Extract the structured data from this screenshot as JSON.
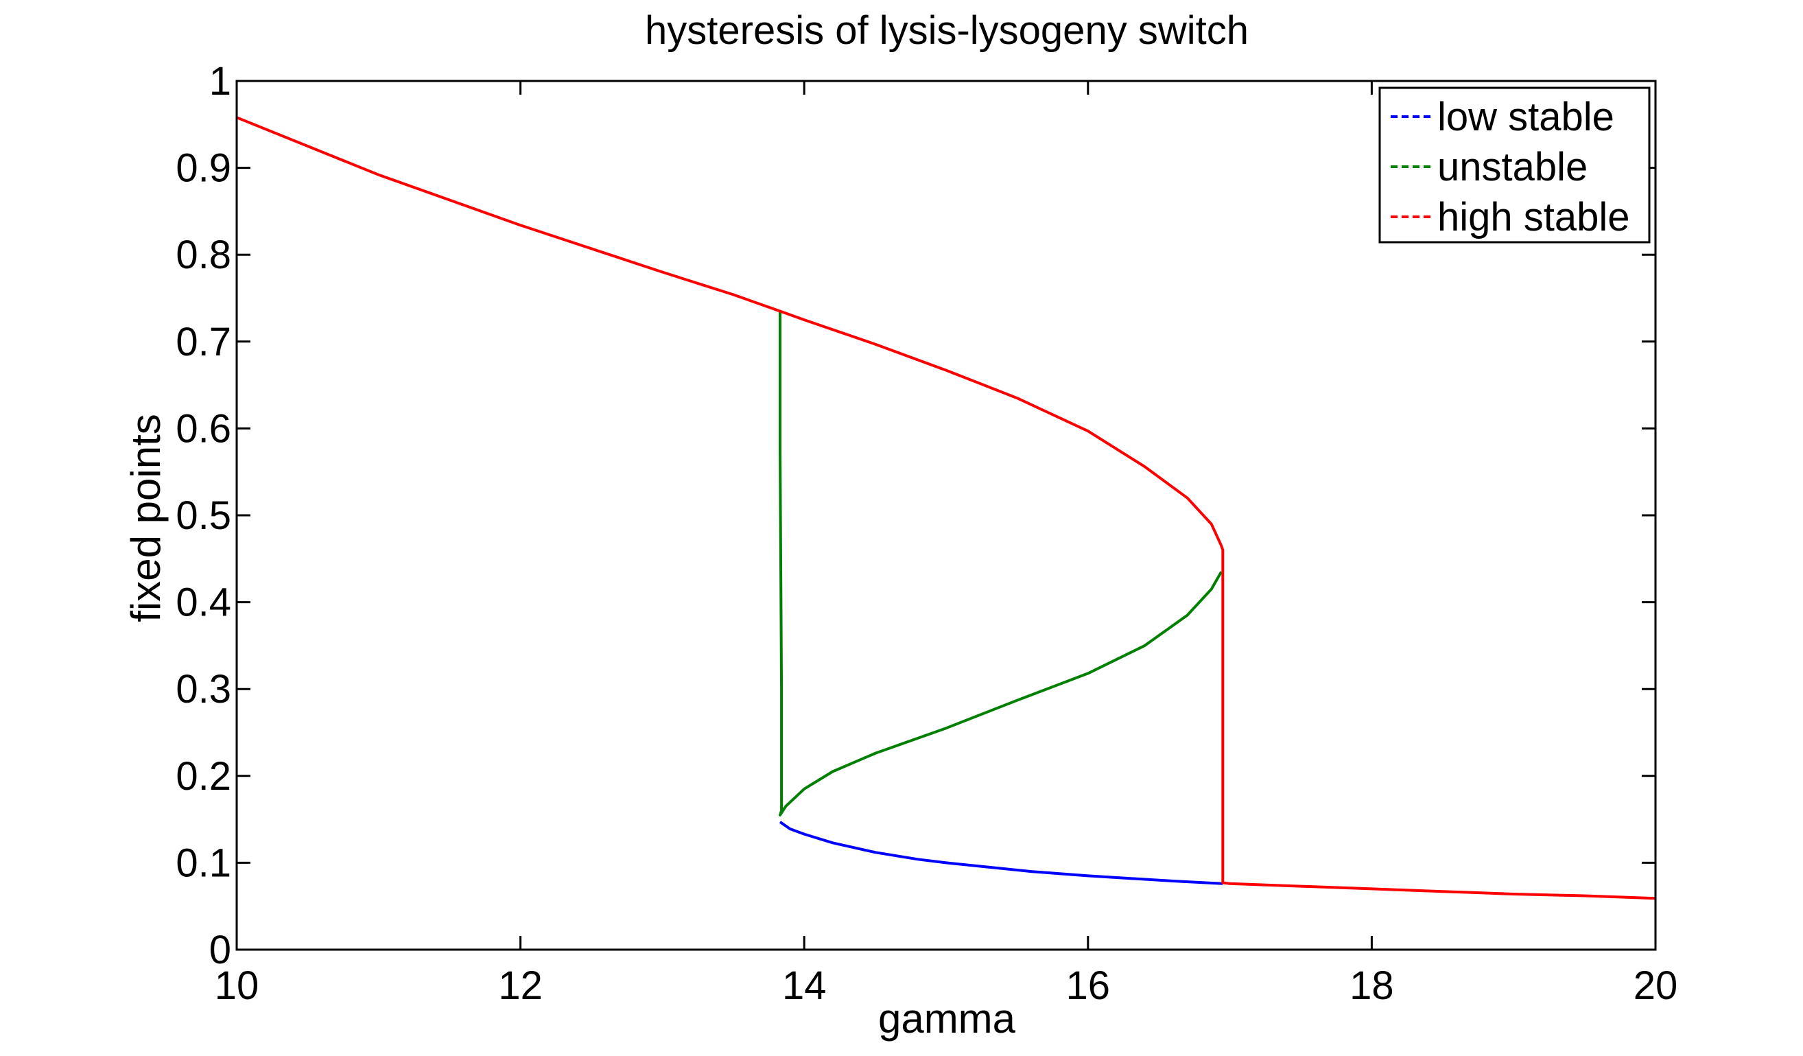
{
  "chart_data": {
    "type": "line",
    "title": "hysteresis of lysis-lysogeny switch",
    "xlabel": "gamma",
    "ylabel": "fixed points",
    "xlim": [
      10,
      20
    ],
    "ylim": [
      0,
      1
    ],
    "xticks": [
      10,
      12,
      14,
      16,
      18,
      20
    ],
    "yticks": [
      0,
      0.1,
      0.2,
      0.3,
      0.4,
      0.5,
      0.6,
      0.7,
      0.8,
      0.9,
      1
    ],
    "xtick_labels": [
      "10",
      "12",
      "14",
      "16",
      "18",
      "20"
    ],
    "ytick_labels": [
      "0",
      "0.1",
      "0.2",
      "0.3",
      "0.4",
      "0.5",
      "0.6",
      "0.7",
      "0.8",
      "0.9",
      "1"
    ],
    "grid": false,
    "legend_position": "top-right",
    "series": [
      {
        "name": "low stable",
        "color": "#0000ff",
        "points": [
          [
            13.83,
            0.147
          ],
          [
            13.9,
            0.139
          ],
          [
            14.0,
            0.133
          ],
          [
            14.2,
            0.123
          ],
          [
            14.5,
            0.112
          ],
          [
            14.8,
            0.104
          ],
          [
            15.0,
            0.1
          ],
          [
            15.3,
            0.095
          ],
          [
            15.6,
            0.09
          ],
          [
            16.0,
            0.085
          ],
          [
            16.3,
            0.082
          ],
          [
            16.6,
            0.079
          ],
          [
            16.95,
            0.076
          ]
        ]
      },
      {
        "name": "unstable",
        "color": "#008000",
        "points": [
          [
            13.83,
            0.735
          ],
          [
            13.83,
            0.58
          ],
          [
            13.84,
            0.3
          ],
          [
            13.84,
            0.16
          ],
          [
            13.83,
            0.155
          ],
          [
            13.87,
            0.165
          ],
          [
            14.0,
            0.185
          ],
          [
            14.2,
            0.205
          ],
          [
            14.5,
            0.226
          ],
          [
            15.0,
            0.255
          ],
          [
            15.5,
            0.287
          ],
          [
            16.0,
            0.318
          ],
          [
            16.4,
            0.35
          ],
          [
            16.7,
            0.385
          ],
          [
            16.87,
            0.415
          ],
          [
            16.94,
            0.435
          ]
        ]
      },
      {
        "name": "high stable",
        "color": "#ff0000",
        "points": [
          [
            10.0,
            0.958
          ],
          [
            11.0,
            0.892
          ],
          [
            12.0,
            0.834
          ],
          [
            13.0,
            0.78
          ],
          [
            13.5,
            0.754
          ],
          [
            13.83,
            0.735
          ],
          [
            14.0,
            0.725
          ],
          [
            14.5,
            0.697
          ],
          [
            15.0,
            0.667
          ],
          [
            15.5,
            0.635
          ],
          [
            16.0,
            0.597
          ],
          [
            16.4,
            0.556
          ],
          [
            16.7,
            0.52
          ],
          [
            16.87,
            0.49
          ],
          [
            16.94,
            0.465
          ],
          [
            16.95,
            0.46
          ],
          [
            16.95,
            0.3
          ],
          [
            16.95,
            0.077
          ],
          [
            17.0,
            0.076
          ],
          [
            17.5,
            0.073
          ],
          [
            18.0,
            0.07
          ],
          [
            18.5,
            0.067
          ],
          [
            19.0,
            0.064
          ],
          [
            19.5,
            0.062
          ],
          [
            20.0,
            0.059
          ]
        ]
      }
    ]
  }
}
